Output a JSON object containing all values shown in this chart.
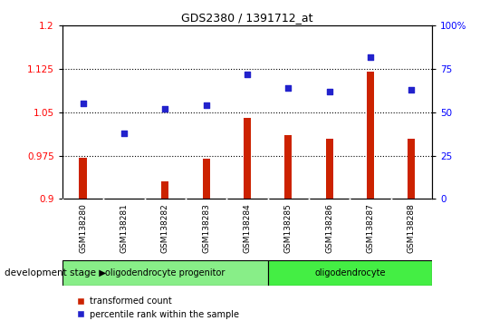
{
  "title": "GDS2380 / 1391712_at",
  "samples": [
    "GSM138280",
    "GSM138281",
    "GSM138282",
    "GSM138283",
    "GSM138284",
    "GSM138285",
    "GSM138286",
    "GSM138287",
    "GSM138288"
  ],
  "transformed_count": [
    0.972,
    0.901,
    0.93,
    0.97,
    1.04,
    1.01,
    1.005,
    1.12,
    1.005
  ],
  "percentile_rank": [
    55,
    38,
    52,
    54,
    72,
    64,
    62,
    82,
    63
  ],
  "ylim_left": [
    0.9,
    1.2
  ],
  "ylim_right": [
    0,
    100
  ],
  "yticks_left": [
    0.9,
    0.975,
    1.05,
    1.125,
    1.2
  ],
  "yticks_right": [
    0,
    25,
    50,
    75,
    100
  ],
  "ytick_labels_left": [
    "0.9",
    "0.975",
    "1.05",
    "1.125",
    "1.2"
  ],
  "ytick_labels_right": [
    "0",
    "25",
    "50",
    "75",
    "100%"
  ],
  "bar_color": "#cc2200",
  "dot_color": "#2222cc",
  "groups": [
    {
      "label": "oligodendrocyte progenitor",
      "indices": [
        0,
        1,
        2,
        3,
        4
      ],
      "color": "#88ee88"
    },
    {
      "label": "oligodendrocyte",
      "indices": [
        5,
        6,
        7,
        8
      ],
      "color": "#44ee44"
    }
  ],
  "dev_stage_label": "development stage",
  "legend_bar_label": "transformed count",
  "legend_dot_label": "percentile rank within the sample",
  "hgrid_values": [
    0.975,
    1.05,
    1.125
  ],
  "bar_width": 0.18,
  "tick_label_bg": "#d8d8d8",
  "plot_bg": "#ffffff"
}
